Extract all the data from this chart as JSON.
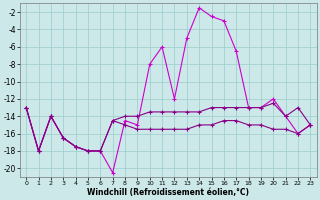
{
  "xlabel": "Windchill (Refroidissement éolien,°C)",
  "background_color": "#cce8e8",
  "grid_color": "#99cccc",
  "line_color1": "#cc00cc",
  "line_color2": "#880088",
  "hours": [
    0,
    1,
    2,
    3,
    4,
    5,
    6,
    7,
    8,
    9,
    10,
    11,
    12,
    13,
    14,
    15,
    16,
    17,
    18,
    19,
    20,
    21,
    22,
    23
  ],
  "series": [
    [
      -13,
      -18,
      -14,
      -16.5,
      -17.5,
      -18,
      -18,
      -20.5,
      -14.5,
      -15,
      -8,
      -6,
      -12,
      -5,
      -1.5,
      -2.5,
      -3,
      -6.5,
      -13,
      -13,
      -12,
      -14,
      -16,
      -15
    ],
    [
      -13,
      -18,
      -14,
      -16.5,
      -17.5,
      -18,
      -18,
      -14.5,
      -14,
      -14,
      -13.5,
      -13.5,
      -13.5,
      -13.5,
      -13.5,
      -13,
      -13,
      -13,
      -13,
      -13,
      -12.5,
      -14,
      -13,
      -15
    ],
    [
      -13,
      -18,
      -14,
      -16.5,
      -17.5,
      -18,
      -18,
      -14.5,
      -15,
      -15.5,
      -15.5,
      -15.5,
      -15.5,
      -15.5,
      -15,
      -15,
      -14.5,
      -14.5,
      -15,
      -15,
      -15.5,
      -15.5,
      -16,
      -15
    ]
  ],
  "ylim": [
    -21,
    -1
  ],
  "xlim": [
    -0.5,
    23.5
  ],
  "yticks": [
    -20,
    -18,
    -16,
    -14,
    -12,
    -10,
    -8,
    -6,
    -4,
    -2
  ],
  "marker": "+",
  "marker_size": 3,
  "line_width": 0.8
}
